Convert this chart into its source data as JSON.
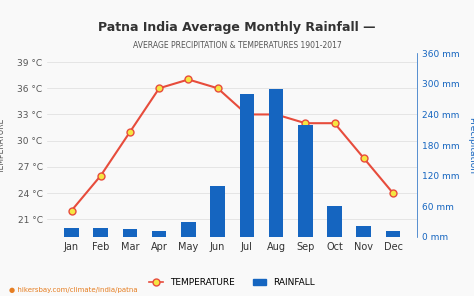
{
  "title": "Patna India Average Monthly Rainfall —",
  "subtitle": "AVERAGE PRECIPITATION & TEMPERATURES 1901-2017",
  "months": [
    "Jan",
    "Feb",
    "Mar",
    "Apr",
    "May",
    "Jun",
    "Jul",
    "Aug",
    "Sep",
    "Oct",
    "Nov",
    "Dec"
  ],
  "temperature": [
    22,
    26,
    31,
    36,
    37,
    36,
    33,
    33,
    32,
    32,
    28,
    24
  ],
  "rainfall": [
    18,
    18,
    15,
    12,
    30,
    100,
    280,
    290,
    220,
    60,
    22,
    12
  ],
  "temp_yticks": [
    21,
    24,
    27,
    30,
    33,
    36,
    39
  ],
  "rain_yticks": [
    0,
    60,
    120,
    180,
    240,
    300,
    360
  ],
  "temp_ylim": [
    19,
    40
  ],
  "rain_ylim": [
    0,
    360
  ],
  "bar_color": "#1565C0",
  "line_color": "#e74c3c",
  "marker_face": "#f5e642",
  "marker_edge": "#e74c3c",
  "right_axis_color": "#1565C0",
  "left_axis_color": "#555555",
  "title_color": "#333333",
  "subtitle_color": "#555555",
  "bg_color": "#f9f9f9",
  "grid_color": "#dddddd",
  "footer": "hikersbay.com/climate/india/patna",
  "footer_color": "#e67e22"
}
